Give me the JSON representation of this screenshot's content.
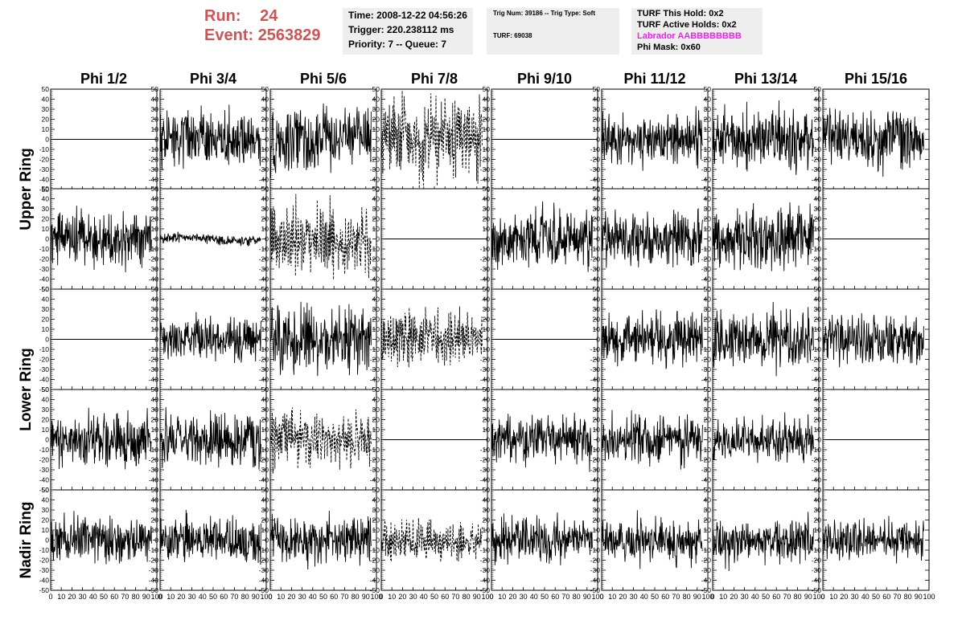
{
  "header": {
    "run_label": "Run:",
    "run_value": "24",
    "event_label": "Event:",
    "event_value": "2563829",
    "title_color": "#cc5555"
  },
  "info_time": {
    "time": "Time: 2008-12-22 04:56:26",
    "trigger": "Trigger: 220.238112 ms",
    "priority": "Priority: 7 -- Queue: 7"
  },
  "info_trig": {
    "trig": "Trig Num: 39186 -- Trig Type: Soft",
    "turf": "TURF: 69038"
  },
  "info_turf": {
    "this_hold": "TURF This Hold: 0x2",
    "active_holds": "TURF Active Holds: 0x2",
    "labrador": "Labrador AABBBBBBBB",
    "labrador_color": "#ee22ee",
    "phi_mask": "Phi Mask: 0x60"
  },
  "chart_data": {
    "type": "line",
    "columns": [
      "Phi 1/2",
      "Phi 3/4",
      "Phi 5/6",
      "Phi 7/8",
      "Phi 9/10",
      "Phi 11/12",
      "Phi 13/14",
      "Phi 15/16"
    ],
    "rings": [
      "Upper Ring",
      "Lower Ring",
      "Nadir Ring"
    ],
    "row_ring": [
      0,
      0,
      1,
      1,
      2
    ],
    "xlim": [
      0,
      100
    ],
    "ylim": [
      -50,
      50
    ],
    "x_ticks": [
      0,
      10,
      20,
      30,
      40,
      50,
      60,
      70,
      80,
      90,
      100
    ],
    "y_ticks": [
      -50,
      -40,
      -30,
      -20,
      -10,
      0,
      10,
      20,
      30,
      40,
      50
    ],
    "line_color": "#000000",
    "panels": [
      [
        "flat",
        "noise",
        "noise",
        "dashed",
        "flat",
        "noise",
        "noise",
        "noise"
      ],
      [
        "noise",
        "small",
        "dashed",
        "flat",
        "noise",
        "noise",
        "noise",
        "flat"
      ],
      [
        "flat",
        "noise",
        "noise",
        "dashed",
        "flat",
        "noise",
        "noise",
        "noise"
      ],
      [
        "noise",
        "noise",
        "dashed",
        "flat",
        "noise",
        "noise",
        "noise",
        "flat"
      ],
      [
        "noise",
        "noise",
        "noise",
        "dashed",
        "noise",
        "noise",
        "noise",
        "noise"
      ]
    ],
    "amplitude": [
      [
        0,
        17,
        19,
        25,
        0,
        15,
        18,
        18
      ],
      [
        17,
        3,
        21,
        0,
        18,
        17,
        19,
        0
      ],
      [
        0,
        13,
        21,
        17,
        0,
        16,
        17,
        15
      ],
      [
        15,
        16,
        16,
        0,
        14,
        15,
        13,
        0
      ],
      [
        14,
        13,
        14,
        12,
        13,
        14,
        14,
        12
      ]
    ]
  }
}
